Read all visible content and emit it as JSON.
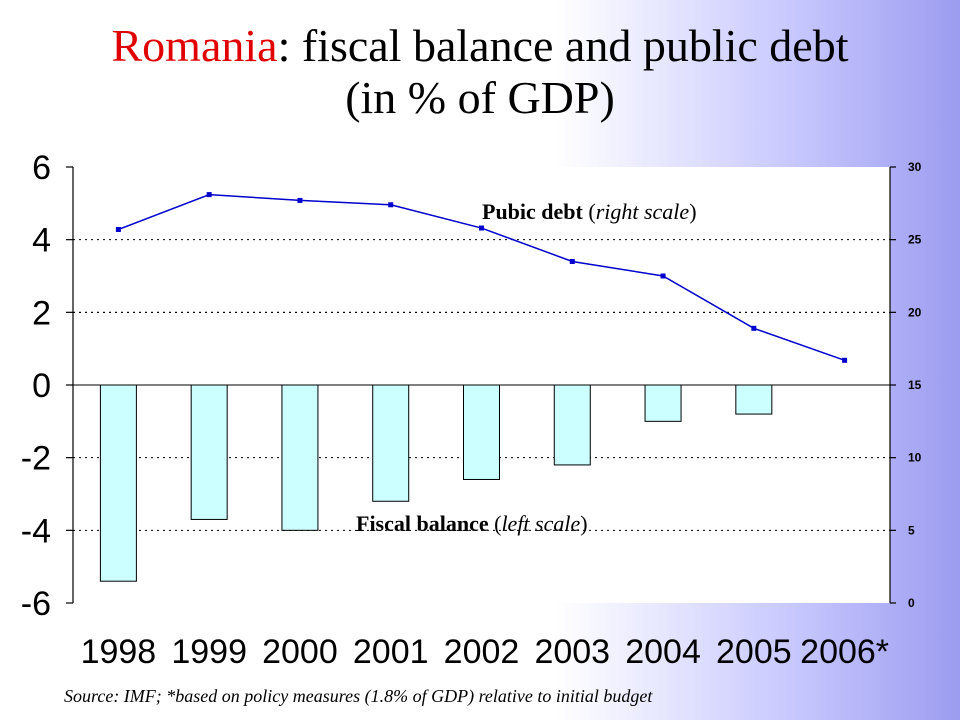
{
  "title": {
    "highlight": "Romania",
    "line1_rest": ": fiscal balance and public debt",
    "line2": "(in % of GDP)",
    "highlight_color": "#e00000"
  },
  "chart_data": {
    "type": "bar+line",
    "categories": [
      "1998",
      "1999",
      "2000",
      "2001",
      "2002",
      "2003",
      "2004",
      "2005",
      "2006*"
    ],
    "series": [
      {
        "name": "Fiscal balance",
        "name_note": "(left scale)",
        "type": "bar",
        "axis": "left",
        "values": [
          -5.4,
          -3.7,
          -4.0,
          -3.2,
          -2.6,
          -2.2,
          -1.0,
          -0.8,
          null
        ],
        "color": "#ccffff"
      },
      {
        "name": "Pubic debt",
        "name_note": "(right scale)",
        "type": "line",
        "axis": "right",
        "values": [
          25.7,
          28.1,
          27.7,
          27.4,
          25.8,
          23.5,
          22.5,
          18.9,
          16.7
        ],
        "color": "#0000cc"
      }
    ],
    "left_axis": {
      "ylim": [
        -6,
        6
      ],
      "ticks": [
        "6",
        "4",
        "2",
        "0",
        "-2",
        "-4",
        "-6"
      ],
      "tick_values": [
        6,
        4,
        2,
        0,
        -2,
        -4,
        -6
      ]
    },
    "right_axis": {
      "ylim": [
        0,
        30
      ],
      "ticks": [
        "30",
        "25",
        "20",
        "15",
        "10",
        "5",
        "0"
      ],
      "tick_values": [
        30,
        25,
        20,
        15,
        10,
        5,
        0
      ]
    },
    "grid": true
  },
  "source": "Source: IMF; *based on policy measures (1.8% of GDP) relative to initial budget"
}
